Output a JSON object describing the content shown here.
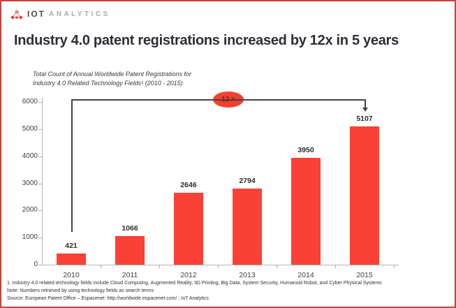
{
  "header": {
    "logo_primary": "IOT",
    "logo_secondary": "ANALYTICS"
  },
  "title": "Industry 4.0 patent registrations increased by 12x in 5 years",
  "subtitle": {
    "line1": "Total Count of Annual Worldwide Patent Registrations for",
    "line2": "Industry 4.0 Related Technology Fields¹ (2010 - 2015)"
  },
  "chart_data": {
    "type": "bar",
    "title": "Total Count of Annual Worldwide Patent Registrations for Industry 4.0 Related Technology Fields (2010 - 2015)",
    "categories": [
      "2010",
      "2011",
      "2012",
      "2013",
      "2014",
      "2015"
    ],
    "values": [
      421,
      1066,
      2646,
      2794,
      3950,
      5107
    ],
    "xlabel": "",
    "ylabel": "",
    "ylim": [
      0,
      6000
    ],
    "ytick_step": 1000,
    "grid": false,
    "legend": false,
    "data_labels": true,
    "annotation": {
      "text": "12 x",
      "from_category": "2010",
      "to_category": "2015",
      "meaning": "12x increase from 2010 to 2015"
    }
  },
  "footnotes": [
    "1.  Industry 4.0 related technology fields include Cloud Computing, Augmented Reality, 3D Printing, Big Data, System Security, Humanoid Robot, and Cyber Physical Systems",
    "Note: Numbers retrieved by using technology fields as search terms",
    "Source: European Patent Office – Espacenet: http://worldwide.espacenet.com/ ; IoT Analytics"
  ],
  "colors": {
    "bar": "#fa4136",
    "frame_border": "#c0463c",
    "badge_bg": "#f4402e",
    "badge_text": "#8c1c10",
    "annotation_line": "#454545",
    "title_text": "#2e2e36"
  }
}
